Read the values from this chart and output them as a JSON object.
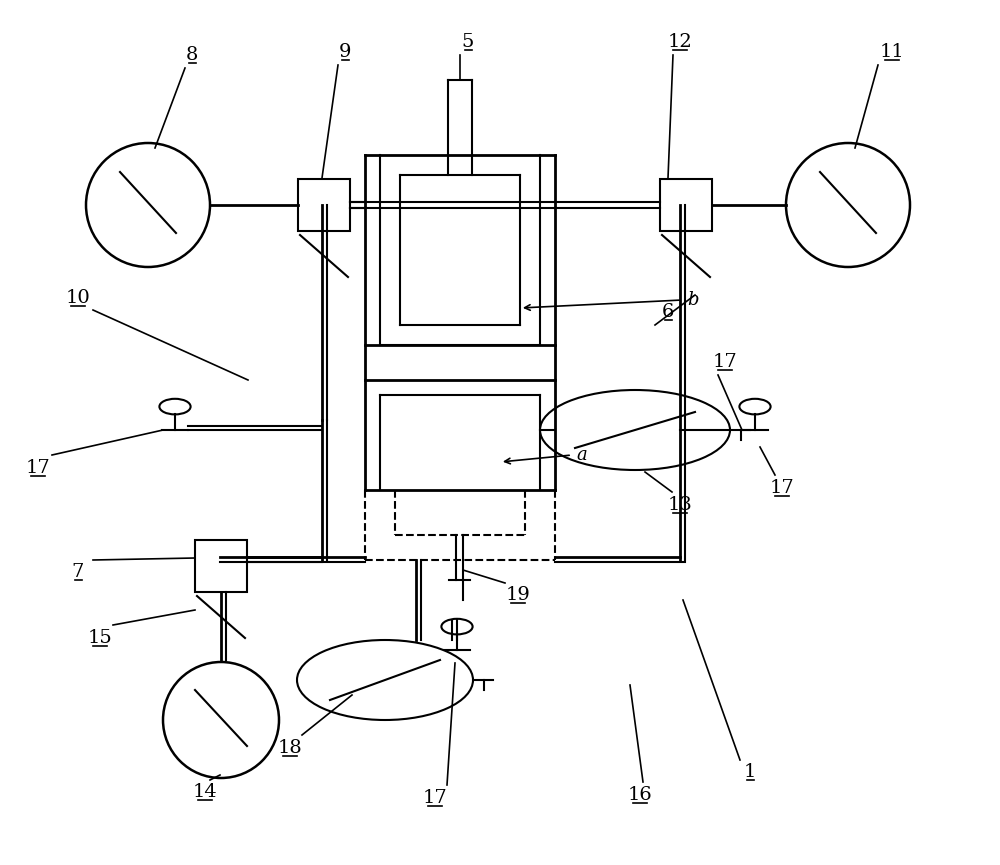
{
  "bg_color": "#ffffff",
  "line_color": "#000000",
  "fig_width": 10.0,
  "fig_height": 8.65,
  "dpi": 100
}
